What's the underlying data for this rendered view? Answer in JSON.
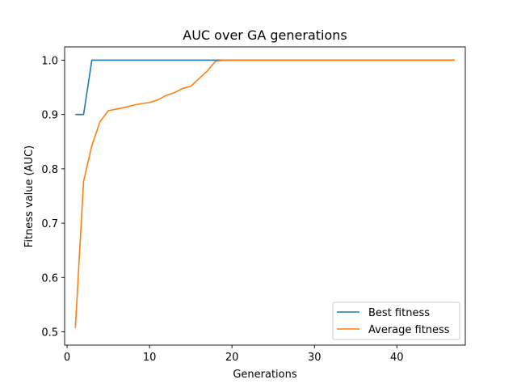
{
  "chart_data": {
    "type": "line",
    "title": "AUC over GA generations",
    "xlabel": "Generations",
    "ylabel": "Fitness value (AUC)",
    "xlim": [
      -0.3,
      48.3
    ],
    "ylim": [
      0.4755,
      1.0245
    ],
    "xticks": [
      0,
      10,
      20,
      30,
      40
    ],
    "yticks": [
      0.5,
      0.6,
      0.7,
      0.8,
      0.9,
      1.0
    ],
    "ytick_labels": [
      "0.5",
      "0.6",
      "0.7",
      "0.8",
      "0.9",
      "1.0"
    ],
    "grid": false,
    "legend_position": "lower-right",
    "x": [
      1,
      2,
      3,
      4,
      5,
      6,
      7,
      8,
      9,
      10,
      11,
      12,
      13,
      14,
      15,
      16,
      17,
      18,
      19,
      20,
      21,
      22,
      23,
      24,
      25,
      26,
      27,
      28,
      29,
      30,
      31,
      32,
      33,
      34,
      35,
      36,
      37,
      38,
      39,
      40,
      41,
      42,
      43,
      44,
      45,
      46,
      47
    ],
    "series": [
      {
        "name": "Best fitness",
        "color": "#1f77b4",
        "values": [
          0.9,
          0.9,
          1.0,
          1.0,
          1.0,
          1.0,
          1.0,
          1.0,
          1.0,
          1.0,
          1.0,
          1.0,
          1.0,
          1.0,
          1.0,
          1.0,
          1.0,
          1.0,
          1.0,
          1.0,
          1.0,
          1.0,
          1.0,
          1.0,
          1.0,
          1.0,
          1.0,
          1.0,
          1.0,
          1.0,
          1.0,
          1.0,
          1.0,
          1.0,
          1.0,
          1.0,
          1.0,
          1.0,
          1.0,
          1.0,
          1.0,
          1.0,
          1.0,
          1.0,
          1.0,
          1.0,
          1.0
        ]
      },
      {
        "name": "Average fitness",
        "color": "#ff7f0e",
        "values": [
          0.507,
          0.777,
          0.843,
          0.887,
          0.907,
          0.91,
          0.913,
          0.917,
          0.92,
          0.922,
          0.927,
          0.935,
          0.94,
          0.948,
          0.952,
          0.966,
          0.98,
          0.998,
          1.0,
          1.0,
          1.0,
          1.0,
          1.0,
          1.0,
          1.0,
          1.0,
          1.0,
          1.0,
          1.0,
          1.0,
          1.0,
          1.0,
          1.0,
          1.0,
          1.0,
          1.0,
          1.0,
          1.0,
          1.0,
          1.0,
          1.0,
          1.0,
          1.0,
          1.0,
          1.0,
          1.0,
          1.0
        ]
      }
    ]
  }
}
